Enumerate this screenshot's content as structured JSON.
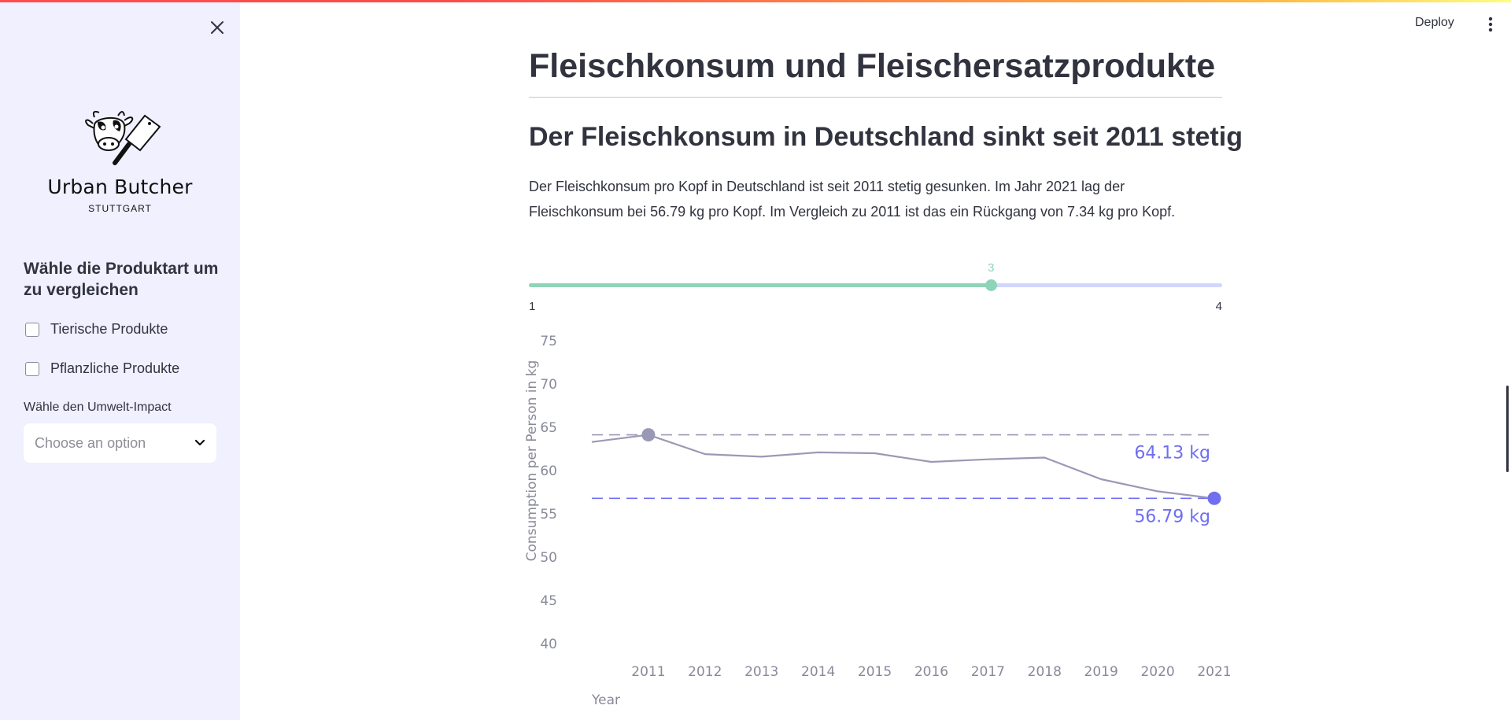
{
  "sidebar": {
    "brand_name": "Urban Butcher",
    "brand_city": "STUTTGART",
    "product_heading": "Wähle die Produktart um zu vergleichen",
    "checkboxes": [
      {
        "label": "Tierische Produkte",
        "checked": false
      },
      {
        "label": "Pflanzliche Produkte",
        "checked": false
      }
    ],
    "impact_label": "Wähle den Umwelt-Impact",
    "impact_placeholder": "Choose an option",
    "icons": {
      "close": "close-icon",
      "logo": "cow-cleaver-logo",
      "select": "chevron-down-icon"
    }
  },
  "header": {
    "deploy_label": "Deploy",
    "menu_icon": "vertical-ellipsis-icon"
  },
  "main": {
    "title": "Fleischkonsum und Fleischersatzprodukte",
    "subheader": "Der Fleischkonsum in Deutschland sinkt seit 2011 stetig",
    "paragraph_line1": "Der Fleischkonsum pro Kopf in Deutschland ist seit 2011 stetig gesunken. Im Jahr 2021 lag der",
    "paragraph_line2": "Fleischkonsum bei 56.79 kg pro Kopf. Im Vergleich zu 2011 ist das ein Rückgang von 7.34 kg pro Kopf.",
    "slider": {
      "min": 1,
      "max": 4,
      "value": 3,
      "min_label": "1",
      "max_label": "4",
      "value_label": "3"
    }
  },
  "chart_data": {
    "type": "line",
    "xlabel": "Year",
    "ylabel": "Consumption per Person in kg",
    "x": [
      2010,
      2011,
      2012,
      2013,
      2014,
      2015,
      2016,
      2017,
      2018,
      2019,
      2020,
      2021
    ],
    "x_tick_labels": [
      "2011",
      "2012",
      "2013",
      "2014",
      "2015",
      "2016",
      "2017",
      "2018",
      "2019",
      "2020",
      "2021"
    ],
    "y_ticks": [
      75,
      70,
      65,
      60,
      55,
      50,
      45,
      40
    ],
    "ylim": [
      40,
      75
    ],
    "series": [
      {
        "values": [
          63.3,
          64.13,
          61.9,
          61.6,
          62.1,
          62.0,
          61.0,
          61.3,
          61.5,
          59.0,
          57.6,
          56.79
        ],
        "color": "#9a99b5"
      }
    ],
    "highlights": [
      {
        "x": 2011,
        "y": 64.13,
        "label": "64.13 kg",
        "color": "#9a99b5",
        "line_color": "#9a99b5"
      },
      {
        "x": 2021,
        "y": 56.79,
        "label": "56.79 kg",
        "color": "#6f6ff0",
        "line_color": "#6f6ff0"
      }
    ],
    "grid": false
  }
}
